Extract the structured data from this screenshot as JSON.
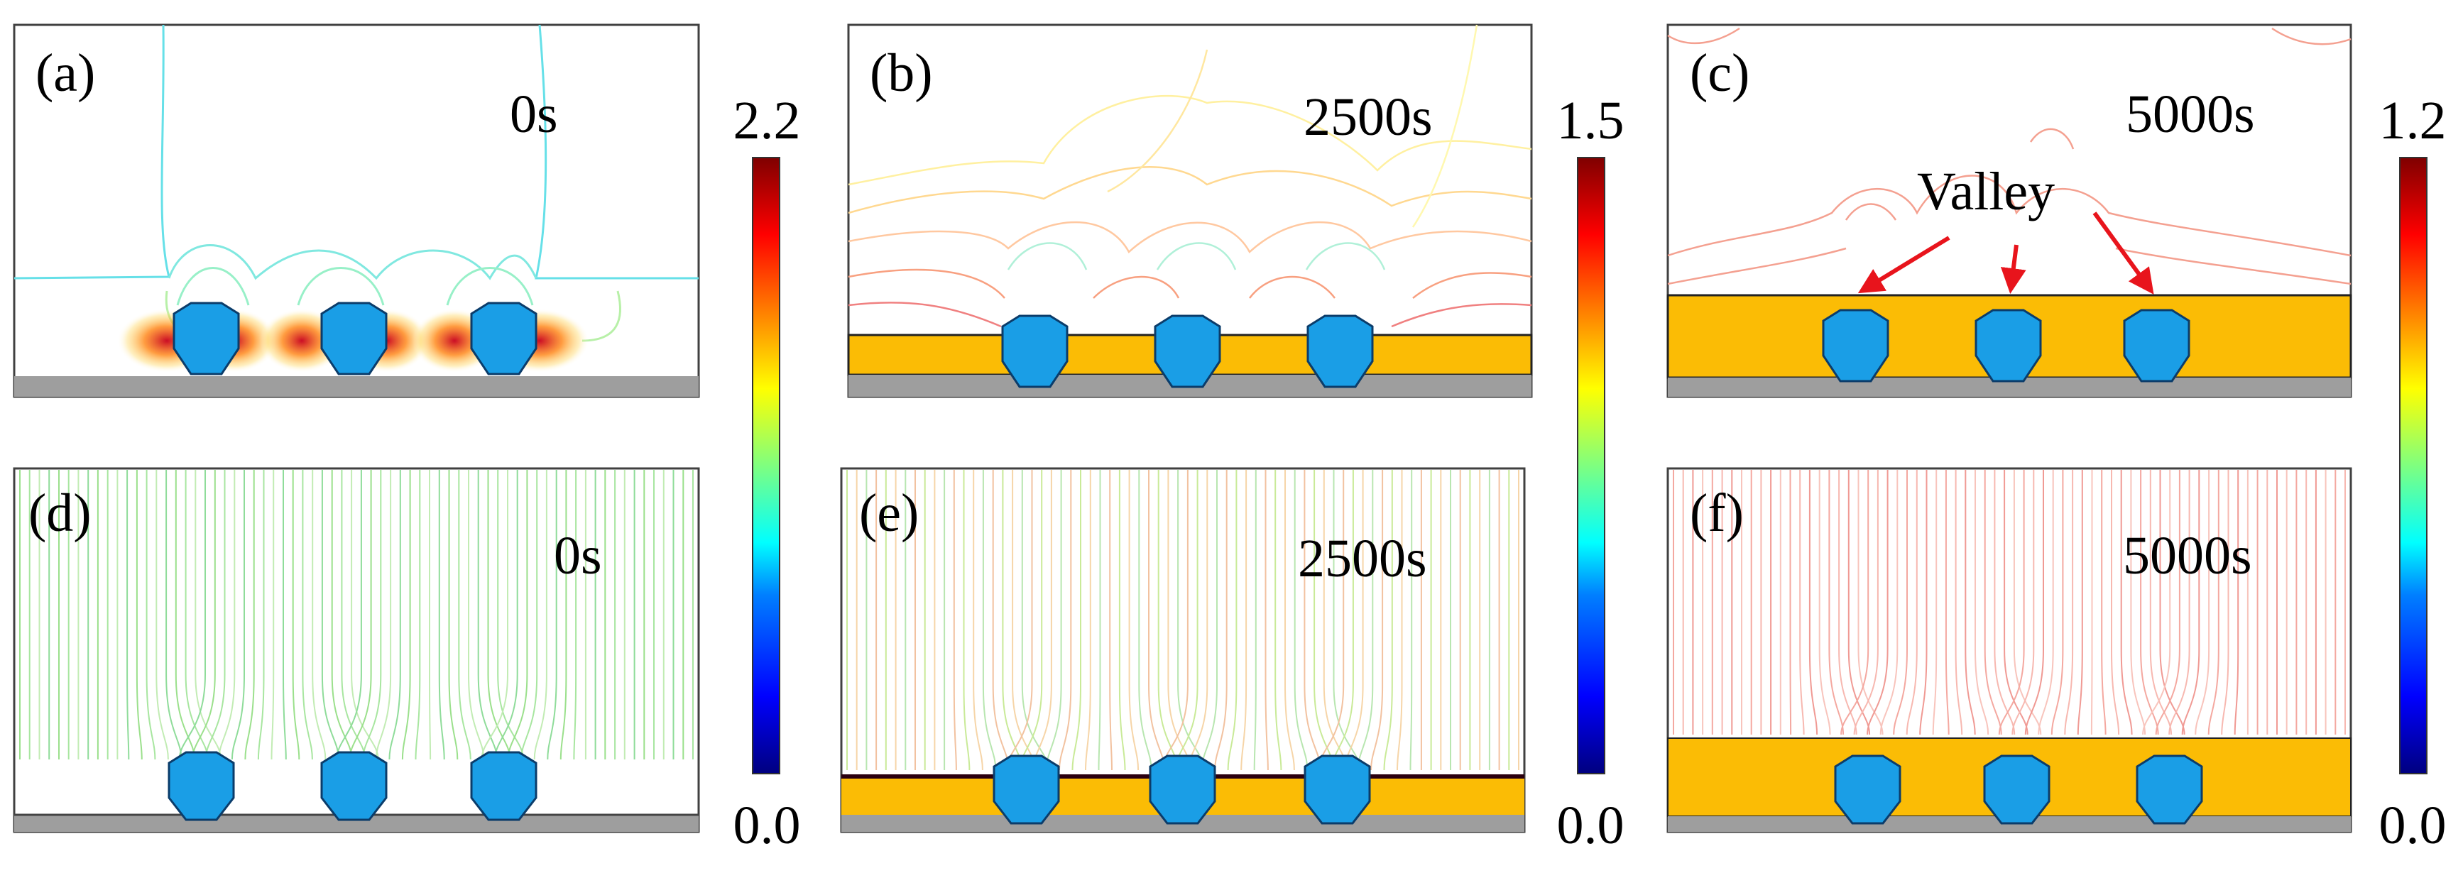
{
  "figure": {
    "panels": [
      {
        "id": "a",
        "label": "(a)",
        "time": "0s",
        "row": "potential",
        "has_film": false,
        "film_thick": false
      },
      {
        "id": "b",
        "label": "(b)",
        "time": "2500s",
        "row": "potential",
        "has_film": true,
        "film_thick": false
      },
      {
        "id": "c",
        "label": "(c)",
        "time": "5000s",
        "row": "potential",
        "has_film": true,
        "film_thick": true,
        "annotation": "Valley"
      },
      {
        "id": "d",
        "label": "(d)",
        "time": "0s",
        "row": "field",
        "has_film": false,
        "film_thick": false
      },
      {
        "id": "e",
        "label": "(e)",
        "time": "2500s",
        "row": "field",
        "has_film": true,
        "film_thick": false
      },
      {
        "id": "f",
        "label": "(f)",
        "time": "5000s",
        "row": "field",
        "has_film": true,
        "film_thick": true
      }
    ],
    "colorbars": [
      {
        "max": "2.2",
        "min": "0.0"
      },
      {
        "max": "1.5",
        "min": "0.0"
      },
      {
        "max": "1.2",
        "min": "0.0"
      }
    ],
    "colors": {
      "film": "#fbbc05",
      "substrate": "#9e9e9e",
      "particle": "#1a9ee6",
      "particle_stroke": "#0b3c6a",
      "arrow": "#e8141c",
      "colormap": [
        "#00007f",
        "#0000ff",
        "#007fff",
        "#00ffff",
        "#7fff7f",
        "#ffff00",
        "#ff7f00",
        "#ff0000",
        "#7f0000"
      ]
    }
  }
}
